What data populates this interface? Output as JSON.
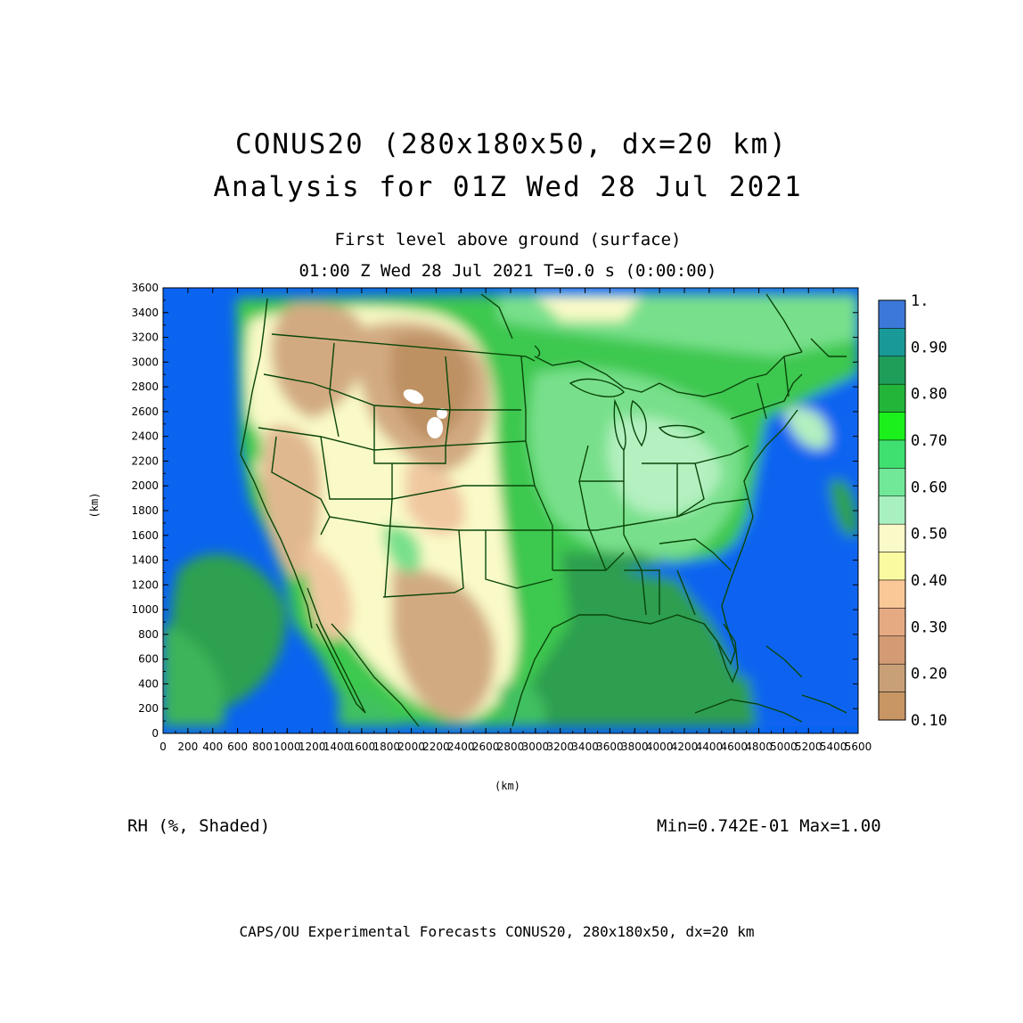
{
  "title": {
    "line1": "CONUS20 (280x180x50, dx=20 km)",
    "line2": "Analysis for 01Z Wed 28 Jul 2021"
  },
  "subtitle": {
    "line1": "First level above ground (surface)",
    "line2": "01:00 Z Wed 28 Jul 2021   T=0.0 s (0:00:00)"
  },
  "axes": {
    "x_unit": "(km)",
    "y_unit": "(km)",
    "x_ticks": [
      "0",
      "200",
      "400",
      "600",
      "800",
      "1000",
      "1200",
      "1400",
      "1600",
      "1800",
      "2000",
      "2200",
      "2400",
      "2600",
      "2800",
      "3000",
      "3200",
      "3400",
      "3600",
      "3800",
      "4000",
      "4200",
      "4400",
      "4600",
      "4800",
      "5000",
      "5200",
      "5400",
      "5600"
    ],
    "y_ticks": [
      "0",
      "200",
      "400",
      "600",
      "800",
      "1000",
      "1200",
      "1400",
      "1600",
      "1800",
      "2000",
      "2200",
      "2400",
      "2600",
      "2800",
      "3000",
      "3200",
      "3400",
      "3600"
    ],
    "x_range": [
      0,
      5600
    ],
    "y_range": [
      0,
      3600
    ]
  },
  "variable_label": "RH (%, Shaded)",
  "min_max": "Min=0.742E-01 Max=1.00",
  "footer": "CAPS/OU Experimental Forecasts  CONUS20, 280x180x50, dx=20 km",
  "colorbar": {
    "labels": [
      "1.",
      "0.90",
      "0.80",
      "0.70",
      "0.60",
      "0.50",
      "0.40",
      "0.30",
      "0.20",
      "0.10"
    ],
    "colors": [
      "#3c78d8",
      "#1a9999",
      "#1f9e5a",
      "#22b53a",
      "#1cf01c",
      "#40e070",
      "#70e898",
      "#a8f0c0",
      "#fafac8",
      "#fafaa0",
      "#fac896",
      "#e6aa82",
      "#d29b73",
      "#c8a078",
      "#c89664"
    ]
  },
  "palette": {
    "ocean": "#0a64f0",
    "deep_green": "#1f9040",
    "green": "#3cc850",
    "light_green": "#78e08c",
    "pale_green": "#b4f0c0",
    "cream": "#fafac8",
    "pale_yellow": "#f6f0a0",
    "tan_light": "#f0c8a0",
    "tan": "#d2aa82",
    "brown": "#be9164",
    "border": "#0a460a"
  }
}
